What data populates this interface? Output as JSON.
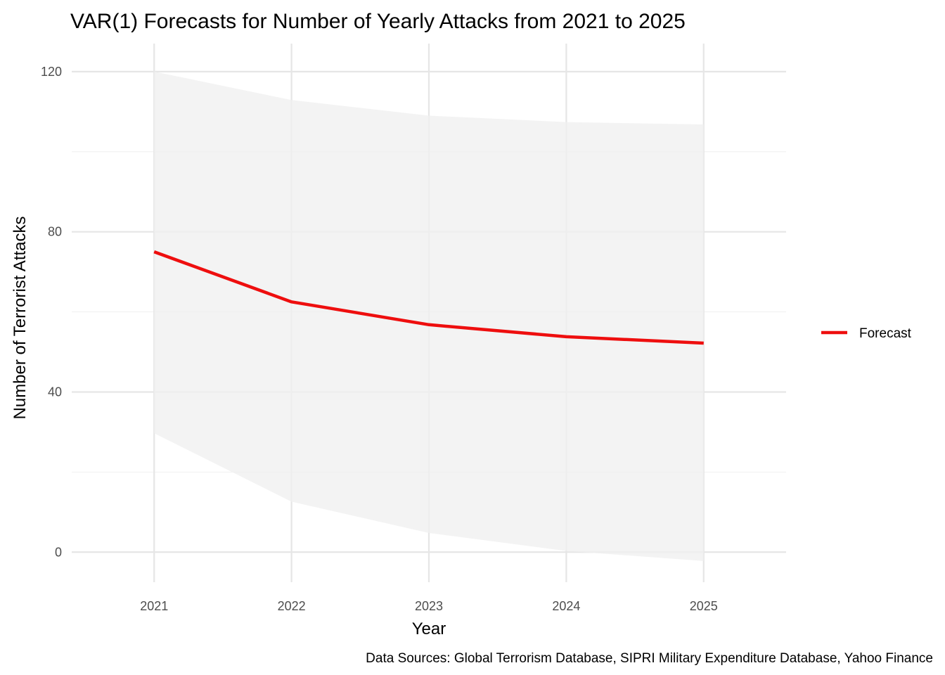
{
  "chart_data": {
    "type": "line",
    "title": "VAR(1) Forecasts for Number of Yearly Attacks from 2021 to 2025",
    "xlabel": "Year",
    "ylabel": "Number of Terrorist Attacks",
    "caption": "Data Sources: Global Terrorism Database, SIPRI Military Expenditure Database, Yahoo Finance",
    "x": [
      2021,
      2022,
      2023,
      2024,
      2025
    ],
    "x_tick_labels": [
      "2021",
      "2022",
      "2023",
      "2024",
      "2025"
    ],
    "y_ticks": [
      0,
      40,
      80,
      120
    ],
    "y_tick_labels": [
      "0",
      "40",
      "80",
      "120"
    ],
    "xlim": [
      2020.4,
      2025.6
    ],
    "ylim": [
      -7.5,
      127
    ],
    "grid": true,
    "legend_position": "right",
    "series": [
      {
        "name": "Forecast",
        "values": [
          75.0,
          62.5,
          56.8,
          53.8,
          52.2
        ],
        "color": "#ee0e0e"
      }
    ],
    "interval": {
      "lower": [
        29.7,
        12.6,
        4.8,
        0.3,
        -2.2
      ],
      "upper": [
        120.0,
        112.9,
        109.0,
        107.4,
        106.8
      ],
      "color": "#f0f0f0"
    }
  }
}
